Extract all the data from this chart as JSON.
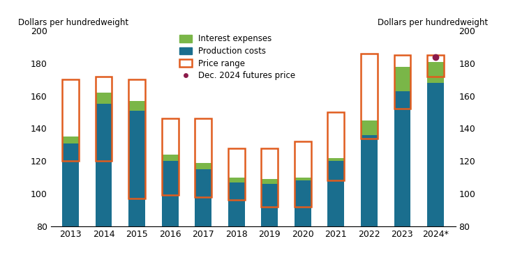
{
  "years": [
    "2013",
    "2014",
    "2015",
    "2016",
    "2017",
    "2018",
    "2019",
    "2020",
    "2021",
    "2022",
    "2023",
    "2024*"
  ],
  "production_costs": [
    131,
    155,
    151,
    120,
    115,
    107,
    106,
    108,
    120,
    136,
    163,
    168
  ],
  "interest_expenses": [
    4,
    7,
    6,
    4,
    4,
    3,
    3,
    2,
    2,
    9,
    15,
    13
  ],
  "price_range_low": [
    120,
    120,
    97,
    99,
    98,
    96,
    92,
    92,
    108,
    134,
    152,
    172
  ],
  "price_range_high": [
    170,
    172,
    170,
    146,
    146,
    128,
    128,
    132,
    150,
    186,
    185,
    185
  ],
  "futures_price": 184,
  "futures_year_index": 11,
  "production_color": "#1a6e8e",
  "interest_color": "#7ab648",
  "price_range_color": "#e05c1e",
  "futures_color": "#8b1a4a",
  "ylim": [
    80,
    200
  ],
  "yticks": [
    80,
    100,
    120,
    140,
    160,
    180,
    200
  ],
  "ylabel": "Dollars per hundredweight",
  "bar_width": 0.5,
  "legend_labels": [
    "Interest expenses",
    "Production costs",
    "Price range",
    "Dec. 2024 futures price"
  ],
  "bar_bottom": 80
}
